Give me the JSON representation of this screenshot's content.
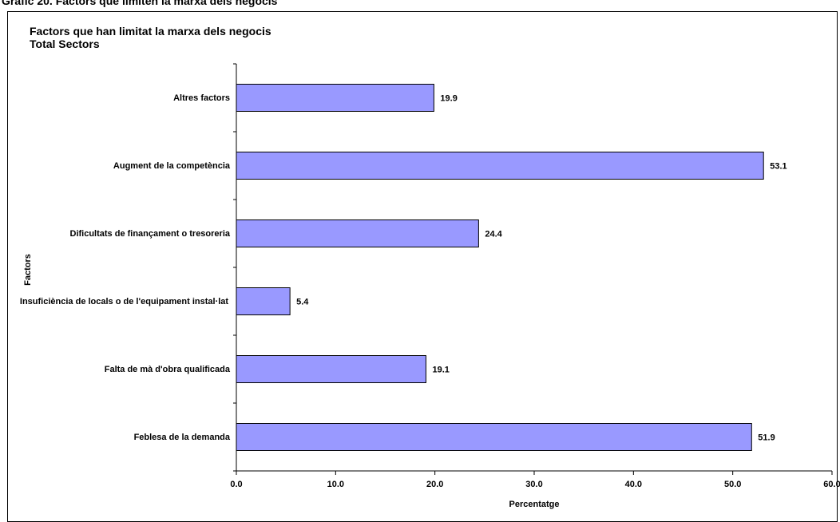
{
  "header": "Gràfic 20. Factors que limiten la marxa dels negocis",
  "chart_data": {
    "type": "bar",
    "orientation": "horizontal",
    "title": "Factors que han limitat la marxa dels negocis",
    "subtitle": "Total Sectors",
    "xlabel": "Percentatge",
    "ylabel": "Factors",
    "categories": [
      "Altres factors",
      "Augment de la competència",
      "Dificultats de finançament o tresoreria",
      "Insuficiència de locals o de l'equipament instal·lat",
      "Falta de mà d'obra qualificada",
      "Feblesa de la demanda"
    ],
    "values": [
      19.9,
      53.1,
      24.4,
      5.4,
      19.1,
      51.9
    ],
    "data_labels": [
      "19.9",
      "53.1",
      "24.4",
      "5.4",
      "19.1",
      "51.9"
    ],
    "xlim": [
      0,
      60
    ],
    "xticks": [
      "0.0",
      "10.0",
      "20.0",
      "30.0",
      "40.0",
      "50.0",
      "60.0"
    ],
    "bar_color": "#9999ff",
    "grid": false,
    "legend": "none"
  }
}
